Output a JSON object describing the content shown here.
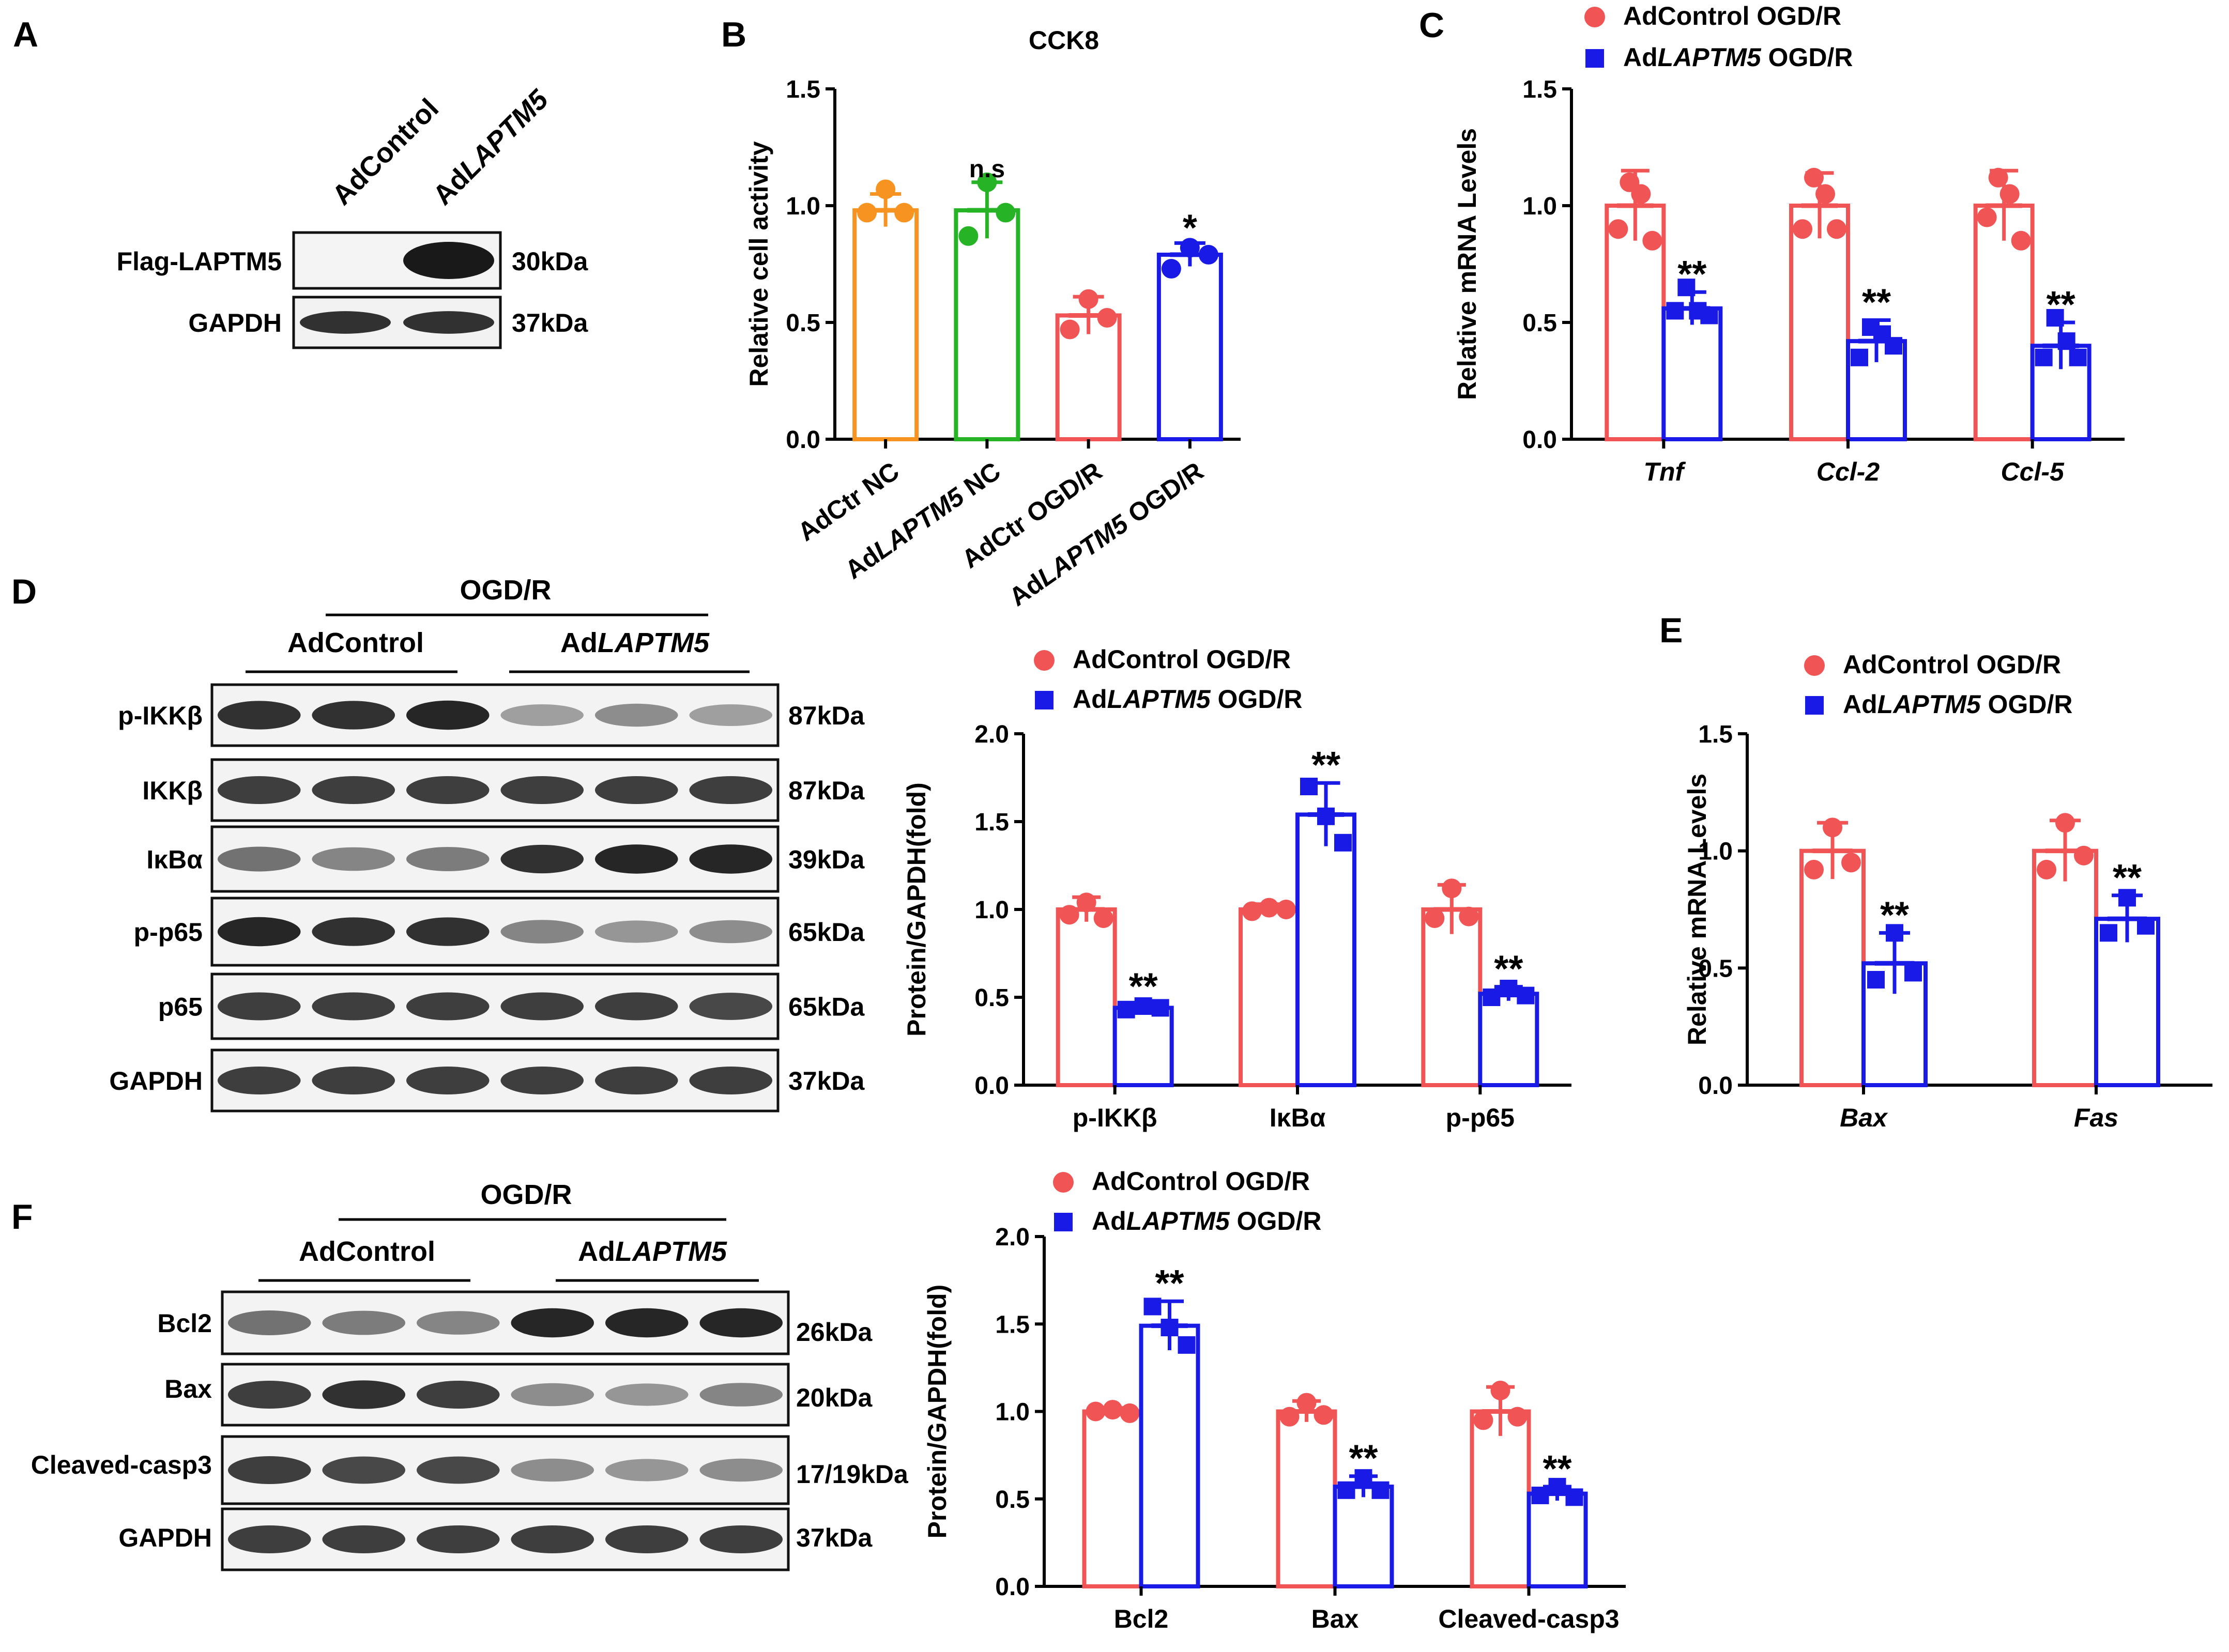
{
  "colors": {
    "control": "#f05454",
    "laptm5": "#1a1ae6",
    "orange": "#f79321",
    "green": "#26b426"
  },
  "panel_letters": {
    "A": "A",
    "B": "B",
    "C": "C",
    "D": "D",
    "E": "E",
    "F": "F"
  },
  "panelA": {
    "lanes": [
      "AdControl",
      "AdLAPTM5"
    ],
    "lane_prefix": "Ad",
    "lane_italic": "LAPTM5",
    "rows": [
      {
        "label": "Flag-LAPTM5",
        "kda": "30kDa"
      },
      {
        "label": "GAPDH",
        "kda": "37kDa"
      }
    ]
  },
  "panelD": {
    "treatment": "OGD/R",
    "group1": "AdControl",
    "group2_prefix": "Ad",
    "group2_italic": "LAPTM5",
    "rows": [
      {
        "label": "p-IKKβ",
        "kda": "87kDa"
      },
      {
        "label": "IKKβ",
        "kda": "87kDa"
      },
      {
        "label": "IκBα",
        "kda": "39kDa"
      },
      {
        "label": "p-p65",
        "kda": "65kDa"
      },
      {
        "label": "p65",
        "kda": "65kDa"
      },
      {
        "label": "GAPDH",
        "kda": "37kDa"
      }
    ]
  },
  "panelF": {
    "treatment": "OGD/R",
    "group1": "AdControl",
    "group2_prefix": "Ad",
    "group2_italic": "LAPTM5",
    "rows": [
      {
        "label": "Bcl2",
        "kda": "26kDa"
      },
      {
        "label": "Bax",
        "kda": "20kDa"
      },
      {
        "label": "Cleaved-casp3",
        "kda": "17/19kDa"
      },
      {
        "label": "GAPDH",
        "kda": "37kDa"
      }
    ]
  },
  "legend": {
    "control": "AdControl OGD/R",
    "laptm5_prefix": "Ad",
    "laptm5_italic": "LAPTM5",
    "laptm5_suffix": " OGD/R"
  },
  "chart_data": [
    {
      "id": "B",
      "type": "bar",
      "title": "CCK8",
      "ylabel": "Relative cell activity",
      "ylim": [
        0,
        1.5
      ],
      "yticks": [
        "0.0",
        "0.5",
        "1.0",
        "1.5"
      ],
      "categories": [
        "AdCtr NC",
        "AdLAPTM5 NC",
        "AdCtr OGD/R",
        "AdLAPTM5 OGD/R"
      ],
      "category_colors": [
        "#f79321",
        "#26b426",
        "#f05454",
        "#1a1ae6"
      ],
      "values": [
        0.98,
        0.98,
        0.53,
        0.79
      ],
      "sd": [
        0.07,
        0.12,
        0.08,
        0.05
      ],
      "points": [
        [
          0.97,
          1.07,
          0.97
        ],
        [
          0.87,
          1.1,
          0.97
        ],
        [
          0.47,
          0.6,
          0.52
        ],
        [
          0.73,
          0.82,
          0.79
        ]
      ],
      "annotations": [
        "",
        "n.s",
        "",
        "*"
      ]
    },
    {
      "id": "C",
      "type": "bar",
      "ylabel": "Relative mRNA Levels",
      "ylim": [
        0,
        1.5
      ],
      "yticks": [
        "0.0",
        "0.5",
        "1.0",
        "1.5"
      ],
      "categories": [
        "Tnf",
        "Ccl-2",
        "Ccl-5"
      ],
      "category_italic": true,
      "series": [
        {
          "name": "AdControl OGD/R",
          "values": [
            1.0,
            1.0,
            1.0
          ],
          "sd": [
            0.15,
            0.14,
            0.15
          ],
          "points": [
            [
              0.9,
              1.1,
              1.05,
              0.85
            ],
            [
              0.9,
              1.12,
              1.05,
              0.9
            ],
            [
              0.95,
              1.12,
              1.05,
              0.85
            ]
          ]
        },
        {
          "name": "AdLAPTM5 OGD/R",
          "values": [
            0.56,
            0.42,
            0.4
          ],
          "sd": [
            0.07,
            0.09,
            0.1
          ],
          "points": [
            [
              0.55,
              0.65,
              0.55,
              0.53
            ],
            [
              0.35,
              0.48,
              0.45,
              0.4
            ],
            [
              0.35,
              0.52,
              0.42,
              0.35
            ]
          ]
        }
      ],
      "annotations": [
        [
          "",
          "**"
        ],
        [
          "",
          "**"
        ],
        [
          "",
          "**"
        ]
      ]
    },
    {
      "id": "D",
      "type": "bar",
      "ylabel": "Protein/GAPDH(fold)",
      "ylim": [
        0,
        2.0
      ],
      "yticks": [
        "0.0",
        "0.5",
        "1.0",
        "1.5",
        "2.0"
      ],
      "categories": [
        "p-IKKβ",
        "IκBα",
        "p-p65"
      ],
      "series": [
        {
          "name": "AdControl OGD/R",
          "values": [
            1.0,
            1.0,
            1.0
          ],
          "sd": [
            0.07,
            0.03,
            0.14
          ],
          "points": [
            [
              0.97,
              1.04,
              0.95
            ],
            [
              0.99,
              1.01,
              1.0
            ],
            [
              0.95,
              1.12,
              0.96
            ]
          ]
        },
        {
          "name": "AdLAPTM5 OGD/R",
          "values": [
            0.44,
            1.54,
            0.52
          ],
          "sd": [
            0.02,
            0.18,
            0.04
          ],
          "points": [
            [
              0.43,
              0.45,
              0.44
            ],
            [
              1.7,
              1.53,
              1.38
            ],
            [
              0.5,
              0.55,
              0.51
            ]
          ]
        }
      ],
      "annotations": [
        [
          "",
          "**"
        ],
        [
          "",
          "**"
        ],
        [
          "",
          "**"
        ]
      ]
    },
    {
      "id": "E",
      "type": "bar",
      "ylabel": "Relative mRNA Levels",
      "ylim": [
        0,
        1.5
      ],
      "yticks": [
        "0.0",
        "0.5",
        "1.0",
        "1.5"
      ],
      "categories": [
        "Bax",
        "Fas"
      ],
      "category_italic": true,
      "series": [
        {
          "name": "AdControl OGD/R",
          "values": [
            1.0,
            1.0
          ],
          "sd": [
            0.12,
            0.13
          ],
          "points": [
            [
              0.92,
              1.1,
              0.95
            ],
            [
              0.92,
              1.12,
              0.98
            ]
          ]
        },
        {
          "name": "AdLAPTM5 OGD/R",
          "values": [
            0.52,
            0.71
          ],
          "sd": [
            0.13,
            0.1
          ],
          "points": [
            [
              0.45,
              0.65,
              0.48
            ],
            [
              0.65,
              0.8,
              0.68
            ]
          ]
        }
      ],
      "annotations": [
        [
          "",
          "**"
        ],
        [
          "",
          "**"
        ]
      ]
    },
    {
      "id": "F",
      "type": "bar",
      "ylabel": "Protein/GAPDH(fold)",
      "ylim": [
        0,
        2.0
      ],
      "yticks": [
        "0.0",
        "0.5",
        "1.0",
        "1.5",
        "2.0"
      ],
      "categories": [
        "Bcl2",
        "Bax",
        "Cleaved-casp3"
      ],
      "series": [
        {
          "name": "AdControl OGD/R",
          "values": [
            1.0,
            1.0,
            1.0
          ],
          "sd": [
            0.02,
            0.06,
            0.14
          ],
          "points": [
            [
              1.0,
              1.01,
              0.99
            ],
            [
              0.97,
              1.05,
              0.98
            ],
            [
              0.95,
              1.12,
              0.97
            ]
          ]
        },
        {
          "name": "AdLAPTM5 OGD/R",
          "values": [
            1.49,
            0.57,
            0.53
          ],
          "sd": [
            0.14,
            0.06,
            0.04
          ],
          "points": [
            [
              1.6,
              1.48,
              1.38
            ],
            [
              0.55,
              0.62,
              0.55
            ],
            [
              0.52,
              0.57,
              0.51
            ]
          ]
        }
      ],
      "annotations": [
        [
          "",
          "**"
        ],
        [
          "",
          "**"
        ],
        [
          "",
          "**"
        ]
      ]
    }
  ]
}
